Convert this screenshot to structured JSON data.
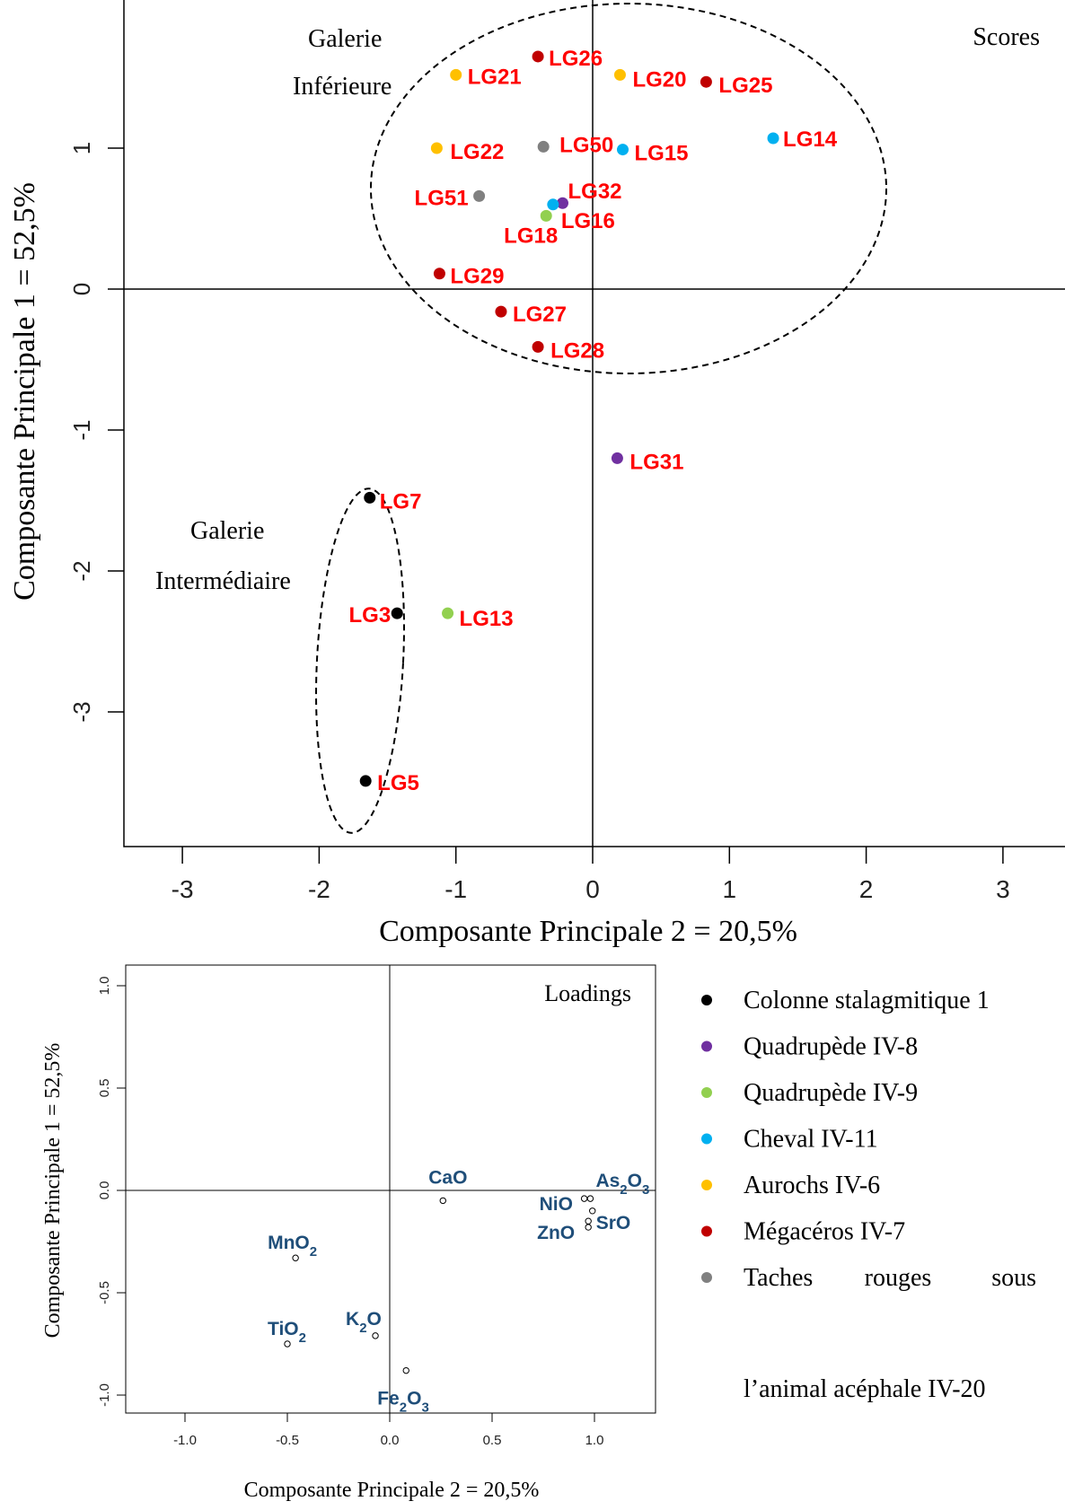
{
  "chart_data": [
    {
      "type": "scatter",
      "title": "Scores",
      "xlabel": "Composante Principale 2 = 20,5%",
      "ylabel": "Composante Principale 1 = 52,5%",
      "xlim": [
        -3.25,
        3.25
      ],
      "ylim": [
        -3.7,
        1.9
      ],
      "xticks": [
        "-3",
        "-2",
        "-1",
        "0",
        "1",
        "2",
        "3"
      ],
      "yticks": [
        "1",
        "0",
        "-1",
        "-2",
        "-3"
      ],
      "annotations": [
        {
          "text": "Galerie",
          "group": "inferieure"
        },
        {
          "text": "Inférieure",
          "group": "inferieure"
        },
        {
          "text": "Galerie",
          "group": "intermediaire"
        },
        {
          "text": "Intermédiaire",
          "group": "intermediaire"
        }
      ],
      "points": [
        {
          "label": "LG26",
          "x": -0.4,
          "y": 1.65,
          "group": "Mégacéros IV-7"
        },
        {
          "label": "LG21",
          "x": -1.0,
          "y": 1.52,
          "group": "Aurochs IV-6"
        },
        {
          "label": "LG20",
          "x": 0.2,
          "y": 1.52,
          "group": "Aurochs IV-6"
        },
        {
          "label": "LG25",
          "x": 0.83,
          "y": 1.47,
          "group": "Mégacéros IV-7"
        },
        {
          "label": "LG22",
          "x": -1.14,
          "y": 1.0,
          "group": "Aurochs IV-6"
        },
        {
          "label": "LG50",
          "x": -0.36,
          "y": 1.01,
          "group": "Taches rouges sous l'animal acéphale IV-20"
        },
        {
          "label": "LG15",
          "x": 0.22,
          "y": 0.99,
          "group": "Cheval IV-11"
        },
        {
          "label": "LG14",
          "x": 1.32,
          "y": 1.07,
          "group": "Cheval IV-11"
        },
        {
          "label": "LG51",
          "x": -0.83,
          "y": 0.66,
          "group": "Taches rouges sous l'animal acéphale IV-20"
        },
        {
          "label": "LG32",
          "x": -0.22,
          "y": 0.61,
          "group": "Quadrupède IV-8"
        },
        {
          "label": "LG16",
          "x": -0.29,
          "y": 0.6,
          "group": "Cheval IV-11"
        },
        {
          "label": "LG18",
          "x": -0.34,
          "y": 0.52,
          "group": "Quadrupède IV-9"
        },
        {
          "label": "LG29",
          "x": -1.12,
          "y": 0.11,
          "group": "Mégacéros IV-7"
        },
        {
          "label": "LG27",
          "x": -0.67,
          "y": -0.16,
          "group": "Mégacéros IV-7"
        },
        {
          "label": "LG28",
          "x": -0.4,
          "y": -0.41,
          "group": "Mégacéros IV-7"
        },
        {
          "label": "LG31",
          "x": 0.18,
          "y": -1.2,
          "group": "Quadrupède IV-8"
        },
        {
          "label": "LG7",
          "x": -1.63,
          "y": -1.48,
          "group": "Colonne stalagmitique 1"
        },
        {
          "label": "LG3",
          "x": -1.43,
          "y": -2.3,
          "group": "Colonne stalagmitique 1"
        },
        {
          "label": "LG13",
          "x": -1.06,
          "y": -2.3,
          "group": "Quadrupède IV-9"
        },
        {
          "label": "LG5",
          "x": -1.66,
          "y": -3.49,
          "group": "Colonne stalagmitique 1"
        }
      ]
    },
    {
      "type": "scatter",
      "title": "Loadings",
      "xlabel": "Composante Principale 2 = 20,5%",
      "ylabel": "Composante Principale 1 = 52,5%",
      "xlim": [
        -1.2,
        1.2
      ],
      "ylim": [
        -1.1,
        1.1
      ],
      "xticks": [
        "-1.0",
        "-0.5",
        "0.0",
        "0.5",
        "1.0"
      ],
      "yticks": [
        "1.0",
        "0.5",
        "0.0",
        "-0.5",
        "-1.0"
      ],
      "points": [
        {
          "label": "CaO",
          "main": "CaO",
          "sub": "",
          "x": 0.26,
          "y": -0.05
        },
        {
          "label": "MnO2",
          "main": "MnO",
          "sub": "2",
          "x": -0.46,
          "y": -0.33
        },
        {
          "label": "TiO2",
          "main": "TiO",
          "sub": "2",
          "x": -0.5,
          "y": -0.75
        },
        {
          "label": "K2O",
          "main": "K",
          "sub": "2",
          "tail": "O",
          "x": -0.07,
          "y": -0.71
        },
        {
          "label": "Fe2O3",
          "main": "Fe",
          "sub": "2",
          "tail": "O",
          "sub2": "3",
          "x": 0.08,
          "y": -0.88
        },
        {
          "label": "NiO",
          "main": "NiO",
          "sub": "",
          "x": 0.95,
          "y": -0.04
        },
        {
          "label": "As2O3",
          "main": "As",
          "sub": "2",
          "tail": "O",
          "sub2": "3",
          "x": 0.98,
          "y": -0.04
        },
        {
          "label": "SrO",
          "main": "SrO",
          "sub": "",
          "x": 0.99,
          "y": -0.1
        },
        {
          "label": "ZnO",
          "main": "ZnO",
          "sub": "",
          "x": 0.97,
          "y": -0.15
        },
        {
          "label": "ZnO-2",
          "main": "",
          "sub": "",
          "x": 0.97,
          "y": -0.18
        }
      ]
    }
  ],
  "legend": {
    "items": [
      {
        "label": "Colonne stalagmitique 1",
        "color": "#000000"
      },
      {
        "label": "Quadrupède IV-8",
        "color": "#7030A0"
      },
      {
        "label": "Quadrupède IV-9",
        "color": "#92D050"
      },
      {
        "label": "Cheval IV-11",
        "color": "#00B0F0"
      },
      {
        "label": "Aurochs IV-6",
        "color": "#FFC000"
      },
      {
        "label": "Mégacéros IV-7",
        "color": "#C00000"
      },
      {
        "label": "Taches rouges sous",
        "color": "#808080"
      }
    ],
    "continuation": "l’animal acéphale IV-20"
  },
  "colors": {
    "label_red": "#FF0000",
    "loading_blue": "#1F4E79"
  }
}
